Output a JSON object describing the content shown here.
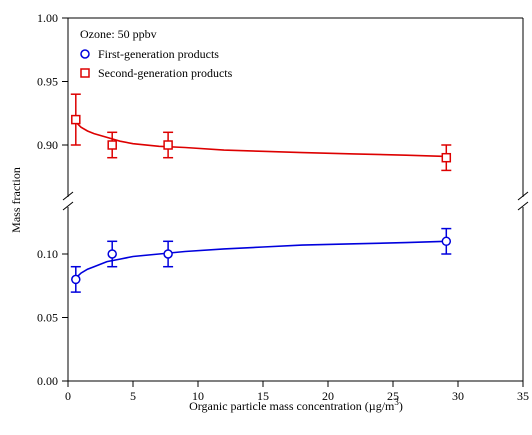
{
  "chart_data": {
    "type": "scatter",
    "annotation": "Ozone: 50 ppbv",
    "xlabel": "Organic particle mass concentration (µg/m",
    "xlabel_superscript": "3",
    "xlabel_suffix": ")",
    "ylabel": "Mass fraction",
    "xlim": [
      0,
      35
    ],
    "x_ticks": [
      "0",
      "5",
      "10",
      "15",
      "20",
      "25",
      "30",
      "35"
    ],
    "y_axis_broken": true,
    "y_upper_ticks": [
      "0.90",
      "0.95",
      "1.00"
    ],
    "y_lower_ticks": [
      "0.00",
      "0.05",
      "0.10"
    ],
    "legend_position": "top-left",
    "series": [
      {
        "name": "First-generation products",
        "marker": "circle",
        "color": "#0000dd",
        "x": [
          0.6,
          3.4,
          7.7,
          29.1
        ],
        "y": [
          0.08,
          0.1,
          0.1,
          0.11
        ],
        "error": [
          0.01,
          0.01,
          0.01,
          0.01
        ],
        "fit": [
          [
            0.6,
            0.081
          ],
          [
            1,
            0.085
          ],
          [
            1.5,
            0.088
          ],
          [
            2,
            0.09
          ],
          [
            3,
            0.094
          ],
          [
            4,
            0.096
          ],
          [
            5,
            0.098
          ],
          [
            7,
            0.1
          ],
          [
            9,
            0.102
          ],
          [
            12,
            0.104
          ],
          [
            15,
            0.1055
          ],
          [
            18,
            0.107
          ],
          [
            22,
            0.108
          ],
          [
            26,
            0.109
          ],
          [
            29.1,
            0.11
          ]
        ]
      },
      {
        "name": "Second-generation products",
        "marker": "square",
        "color": "#dd0000",
        "x": [
          0.6,
          3.4,
          7.7,
          29.1
        ],
        "y": [
          0.92,
          0.9,
          0.9,
          0.89
        ],
        "error": [
          0.02,
          0.01,
          0.01,
          0.01
        ],
        "fit": [
          [
            0.6,
            0.918
          ],
          [
            1,
            0.914
          ],
          [
            1.5,
            0.911
          ],
          [
            2,
            0.909
          ],
          [
            3,
            0.906
          ],
          [
            4,
            0.903
          ],
          [
            5,
            0.901
          ],
          [
            7,
            0.899
          ],
          [
            9,
            0.898
          ],
          [
            12,
            0.896
          ],
          [
            15,
            0.895
          ],
          [
            18,
            0.894
          ],
          [
            22,
            0.893
          ],
          [
            26,
            0.892
          ],
          [
            29.1,
            0.891
          ]
        ]
      }
    ]
  }
}
